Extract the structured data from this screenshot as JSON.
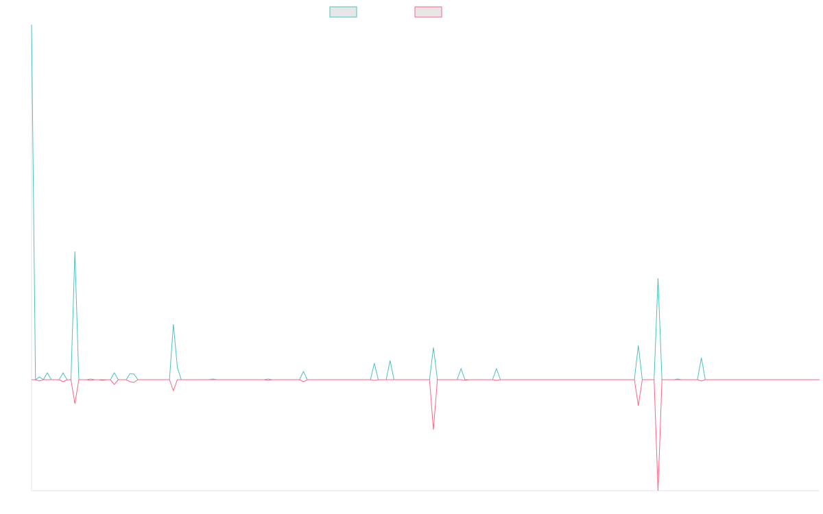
{
  "chart_data": {
    "type": "line",
    "ylim": [
      -162,
      518
    ],
    "series": [
      {
        "color": "#4bc0c0",
        "values": [
          518,
          0,
          4,
          0,
          10,
          0,
          0,
          0,
          10,
          0,
          0,
          187,
          0,
          0,
          0,
          1,
          0,
          0,
          0,
          0,
          0,
          10,
          0,
          0,
          0,
          9,
          8,
          0,
          0,
          0,
          0,
          0,
          0,
          0,
          0,
          0,
          81,
          18,
          0,
          0,
          0,
          0,
          0,
          0,
          0,
          0,
          1,
          0,
          0,
          0,
          0,
          0,
          0,
          0,
          0,
          0,
          0,
          0,
          0,
          0,
          1,
          0,
          0,
          0,
          0,
          0,
          0,
          0,
          0,
          12,
          0,
          0,
          0,
          0,
          0,
          0,
          0,
          0,
          0,
          0,
          0,
          0,
          0,
          0,
          0,
          0,
          0,
          24,
          0,
          0,
          0,
          28,
          0,
          0,
          0,
          0,
          0,
          0,
          0,
          0,
          0,
          0,
          47,
          0,
          0,
          0,
          0,
          0,
          0,
          16,
          0,
          0,
          0,
          0,
          0,
          0,
          0,
          0,
          16,
          0,
          0,
          0,
          0,
          0,
          0,
          0,
          0,
          0,
          0,
          0,
          0,
          0,
          0,
          0,
          0,
          0,
          0,
          0,
          0,
          0,
          0,
          0,
          0,
          0,
          0,
          0,
          0,
          0,
          0,
          0,
          0,
          0,
          0,
          0,
          50,
          0,
          0,
          0,
          0,
          148,
          0,
          0,
          0,
          0,
          1,
          0,
          0,
          0,
          0,
          0,
          32,
          0,
          0,
          0,
          0,
          0,
          0,
          0,
          0,
          0,
          0,
          0,
          0,
          0,
          0,
          0,
          0,
          0,
          0,
          0,
          0,
          0,
          0,
          0,
          0,
          0,
          0,
          0,
          0,
          0,
          0
        ]
      },
      {
        "color": "#ff6384",
        "values": [
          0,
          0,
          -2,
          0,
          0,
          0,
          0,
          0,
          -3,
          0,
          0,
          -35,
          0,
          0,
          0,
          -1,
          0,
          0,
          -1,
          0,
          0,
          -7,
          0,
          0,
          0,
          -3,
          -4,
          0,
          0,
          0,
          0,
          0,
          0,
          0,
          0,
          0,
          -16,
          0,
          0,
          0,
          0,
          0,
          0,
          0,
          0,
          0,
          0,
          0,
          0,
          0,
          0,
          0,
          0,
          0,
          0,
          0,
          0,
          0,
          0,
          0,
          -1,
          0,
          0,
          0,
          0,
          0,
          0,
          0,
          0,
          -3,
          0,
          0,
          0,
          0,
          0,
          0,
          0,
          0,
          0,
          0,
          0,
          0,
          0,
          0,
          0,
          0,
          0,
          -1,
          0,
          0,
          0,
          0,
          0,
          0,
          0,
          0,
          0,
          0,
          0,
          0,
          0,
          0,
          -73,
          0,
          0,
          0,
          0,
          0,
          0,
          0,
          -1,
          0,
          0,
          0,
          0,
          0,
          0,
          0,
          -1,
          0,
          0,
          0,
          0,
          0,
          0,
          0,
          0,
          0,
          0,
          0,
          0,
          0,
          0,
          0,
          0,
          0,
          0,
          0,
          0,
          0,
          0,
          0,
          0,
          0,
          0,
          0,
          0,
          0,
          0,
          0,
          0,
          0,
          0,
          0,
          -38,
          0,
          0,
          0,
          0,
          -162,
          0,
          0,
          0,
          0,
          0,
          0,
          0,
          0,
          0,
          0,
          -2,
          0,
          0,
          0,
          0,
          0,
          0,
          0,
          0,
          0,
          0,
          0,
          0,
          0,
          0,
          0,
          0,
          0,
          0,
          0,
          0,
          0,
          0,
          0,
          0,
          0,
          0,
          0,
          0,
          0,
          0
        ]
      }
    ]
  }
}
